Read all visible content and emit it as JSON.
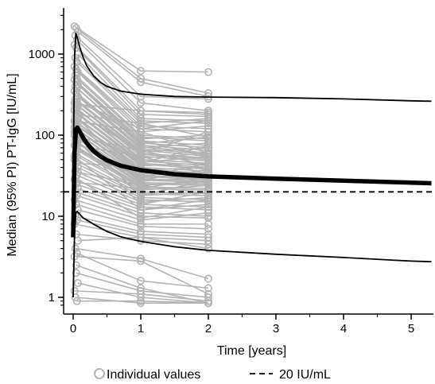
{
  "chart_data": {
    "type": "line",
    "title": "",
    "xlabel": "Time [years]",
    "ylabel": "Median (95% PI) PT-IgG [IU/mL]",
    "x_scale": "linear",
    "y_scale": "log",
    "xlim": [
      -0.15,
      5.3
    ],
    "ylim": [
      0.75,
      3000
    ],
    "x_ticks": [
      0,
      1,
      2,
      3,
      4,
      5
    ],
    "x_tick_labels": [
      "0",
      "1",
      "2",
      "3",
      "4",
      "5"
    ],
    "y_ticks": [
      1,
      10,
      100,
      1000
    ],
    "y_tick_labels": [
      "1",
      "10",
      "100",
      "1000"
    ],
    "grid": false,
    "legend_placement": "bottom",
    "legend": {
      "individual_label": "Individual values",
      "threshold_label": "20 IU/mL"
    },
    "colors": {
      "individual": "#b3b3b3",
      "median": "#000000",
      "interval": "#000000",
      "threshold": "#000000"
    },
    "threshold": 20,
    "series": [
      {
        "role": "median",
        "x": [
          0,
          0.02,
          0.04,
          0.06,
          0.1,
          0.15,
          0.2,
          0.3,
          0.4,
          0.5,
          0.7,
          1.0,
          1.5,
          2.0,
          3.0,
          4.0,
          5.0,
          5.3
        ],
        "y": [
          5.5,
          60,
          115,
          124,
          110,
          92,
          80,
          64,
          55,
          49,
          42,
          37,
          33,
          31,
          29,
          27.5,
          26,
          25.5
        ]
      },
      {
        "role": "upper-95-pi",
        "x": [
          0,
          0.02,
          0.04,
          0.06,
          0.1,
          0.15,
          0.2,
          0.3,
          0.4,
          0.5,
          0.7,
          1.0,
          1.5,
          2.0,
          3.0,
          4.0,
          5.0,
          5.3
        ],
        "y": [
          30,
          900,
          1800,
          1600,
          1200,
          900,
          720,
          540,
          450,
          400,
          350,
          320,
          300,
          295,
          290,
          280,
          265,
          262
        ]
      },
      {
        "role": "lower-95-pi",
        "x": [
          0,
          0.02,
          0.04,
          0.06,
          0.1,
          0.15,
          0.2,
          0.3,
          0.4,
          0.5,
          0.7,
          1.0,
          1.5,
          2.0,
          3.0,
          4.0,
          5.0,
          5.3
        ],
        "y": [
          1.0,
          6,
          11,
          11.5,
          10.5,
          9.5,
          9.0,
          8.0,
          7.2,
          6.5,
          5.6,
          4.9,
          4.2,
          3.8,
          3.4,
          3.1,
          2.8,
          2.75
        ]
      }
    ],
    "individuals": [
      [
        2200,
        620,
        600
      ],
      [
        2100,
        500,
        330
      ],
      [
        1900,
        450,
        300
      ],
      [
        1700,
        300,
        280
      ],
      [
        1500,
        250,
        200
      ],
      [
        1300,
        200,
        180
      ],
      [
        1200,
        180,
        170
      ],
      [
        1000,
        160,
        150
      ],
      [
        900,
        150,
        140
      ],
      [
        800,
        140,
        160
      ],
      [
        700,
        130,
        120
      ],
      [
        650,
        120,
        110
      ],
      [
        600,
        110,
        130
      ],
      [
        550,
        100,
        90
      ],
      [
        500,
        95,
        85
      ],
      [
        480,
        90,
        100
      ],
      [
        450,
        85,
        75
      ],
      [
        420,
        80,
        70
      ],
      [
        400,
        78,
        95
      ],
      [
        380,
        75,
        65
      ],
      [
        350,
        72,
        60
      ],
      [
        330,
        70,
        80
      ],
      [
        300,
        68,
        58
      ],
      [
        280,
        65,
        55
      ],
      [
        260,
        62,
        70
      ],
      [
        250,
        60,
        52
      ],
      [
        240,
        58,
        50
      ],
      [
        230,
        55,
        48
      ],
      [
        220,
        52,
        60
      ],
      [
        210,
        50,
        45
      ],
      [
        200,
        48,
        42
      ],
      [
        190,
        46,
        55
      ],
      [
        180,
        45,
        40
      ],
      [
        170,
        44,
        38
      ],
      [
        160,
        42,
        45
      ],
      [
        150,
        40,
        36
      ],
      [
        145,
        38,
        34
      ],
      [
        140,
        37,
        40
      ],
      [
        135,
        36,
        33
      ],
      [
        130,
        35,
        32
      ],
      [
        125,
        34,
        30
      ],
      [
        120,
        33,
        35
      ],
      [
        115,
        32,
        29
      ],
      [
        110,
        31,
        28
      ],
      [
        105,
        30,
        32
      ],
      [
        100,
        29,
        27
      ],
      [
        95,
        28,
        26
      ],
      [
        90,
        27,
        30
      ],
      [
        85,
        26,
        25
      ],
      [
        80,
        25,
        24
      ],
      [
        75,
        24,
        27
      ],
      [
        70,
        23,
        22
      ],
      [
        65,
        22,
        21
      ],
      [
        60,
        21,
        24
      ],
      [
        55,
        20,
        19
      ],
      [
        50,
        19,
        18
      ],
      [
        45,
        18,
        20
      ],
      [
        40,
        17,
        16
      ],
      [
        36,
        16,
        15
      ],
      [
        32,
        15,
        17
      ],
      [
        28,
        14,
        13
      ],
      [
        25,
        13,
        12
      ],
      [
        22,
        12,
        14
      ],
      [
        20,
        11,
        10
      ],
      [
        18,
        10,
        9.5
      ],
      [
        16,
        9,
        11
      ],
      [
        14,
        8,
        8
      ],
      [
        12,
        7.5,
        7
      ],
      [
        10,
        6.5,
        6
      ],
      [
        9,
        6,
        5.5
      ],
      [
        8,
        5.5,
        5
      ],
      [
        6,
        5,
        4.5
      ],
      [
        5,
        5.5,
        4
      ],
      [
        4,
        3.0,
        1.7
      ],
      [
        3.5,
        1.6,
        1.3
      ],
      [
        3.2,
        2.8,
        1.1
      ],
      [
        2.5,
        1.3,
        0.85
      ],
      [
        1.5,
        1.0,
        0.85
      ],
      [
        1.0,
        0.85,
        0.85
      ],
      [
        0.9,
        0.9,
        0.85
      ],
      [
        1.2,
        1.1,
        0.9
      ],
      [
        2.0,
        1.2,
        1.0
      ],
      [
        300,
        85,
        55
      ],
      [
        260,
        120,
        150
      ],
      [
        240,
        200,
        190
      ],
      [
        210,
        60,
        110
      ],
      [
        180,
        140,
        95
      ],
      [
        160,
        28,
        38
      ],
      [
        150,
        110,
        60
      ],
      [
        130,
        45,
        75
      ],
      [
        110,
        18,
        28
      ],
      [
        95,
        65,
        42
      ],
      [
        85,
        14,
        20
      ],
      [
        75,
        55,
        33
      ],
      [
        65,
        30,
        45
      ],
      [
        55,
        12,
        16
      ],
      [
        45,
        40,
        28
      ],
      [
        35,
        24,
        19
      ],
      [
        30,
        9.5,
        13
      ],
      [
        26,
        22,
        30
      ]
    ]
  }
}
